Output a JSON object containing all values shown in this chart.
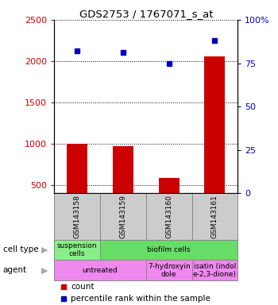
{
  "title": "GDS2753 / 1767071_s_at",
  "samples": [
    "GSM143158",
    "GSM143159",
    "GSM143160",
    "GSM143161"
  ],
  "counts": [
    1000,
    975,
    590,
    2055
  ],
  "percentiles": [
    82,
    81,
    75,
    88
  ],
  "ylim_left": [
    400,
    2500
  ],
  "ylim_right": [
    0,
    100
  ],
  "yticks_left": [
    500,
    1000,
    1500,
    2000,
    2500
  ],
  "yticks_right": [
    0,
    25,
    50,
    75,
    100
  ],
  "bar_color": "#cc0000",
  "dot_color": "#0000bb",
  "cell_spans": [
    {
      "start": 0,
      "end": 1,
      "label": "suspension\ncells",
      "color": "#88ee88"
    },
    {
      "start": 1,
      "end": 4,
      "label": "biofilm cells",
      "color": "#66dd66"
    }
  ],
  "agent_spans": [
    {
      "start": 0,
      "end": 2,
      "label": "untreated",
      "color": "#ee88ee"
    },
    {
      "start": 2,
      "end": 3,
      "label": "7-hydroxyin\ndole",
      "color": "#ee88ee"
    },
    {
      "start": 3,
      "end": 4,
      "label": "isatin (indol\ne-2,3-dione)",
      "color": "#ee88ee"
    }
  ],
  "gsm_bg_color": "#cccccc",
  "gsm_border_color": "#888888",
  "figsize": [
    3.5,
    3.84
  ],
  "dpi": 100
}
